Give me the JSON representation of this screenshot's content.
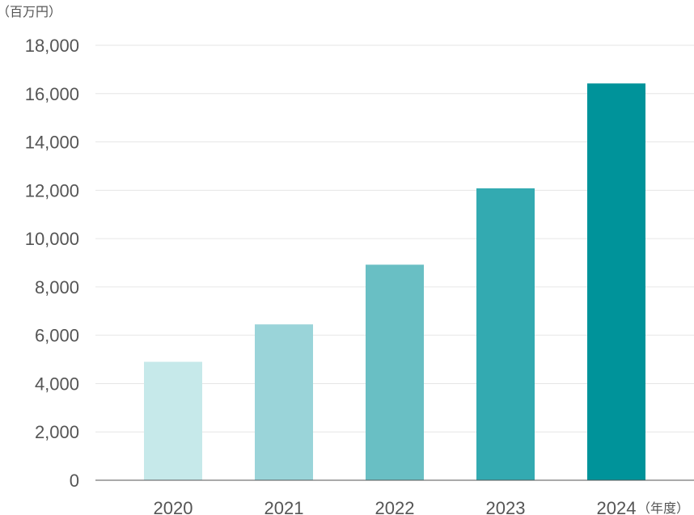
{
  "chart_data": {
    "type": "bar",
    "ylabel": "（百万円）",
    "xlabel": "（年度）",
    "categories": [
      "2020",
      "2021",
      "2022",
      "2023",
      "2024"
    ],
    "values": [
      4900,
      6450,
      8920,
      12080,
      16420
    ],
    "ylim": [
      0,
      18000
    ],
    "yticks": [
      0,
      2000,
      4000,
      6000,
      8000,
      10000,
      12000,
      14000,
      16000,
      18000
    ],
    "ytick_labels": [
      "0",
      "2,000",
      "4,000",
      "6,000",
      "8,000",
      "10,000",
      "12,000",
      "14,000",
      "16,000",
      "18,000"
    ],
    "grid": true,
    "bar_colors": [
      "#c6e9ea",
      "#9ad4d9",
      "#69bfc4",
      "#33aab1",
      "#00939a"
    ]
  }
}
